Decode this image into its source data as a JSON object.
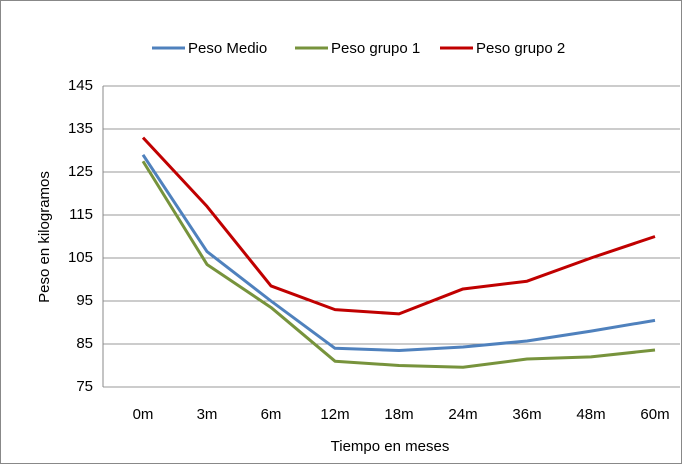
{
  "chart_data": {
    "type": "line",
    "x_label": "Tiempo en meses",
    "y_label": "Peso en kilogramos",
    "categories": [
      "0m",
      "3m",
      "6m",
      "12m",
      "18m",
      "24m",
      "36m",
      "48m",
      "60m"
    ],
    "series": [
      {
        "name": "Peso Medio",
        "color": "#4f81bd",
        "values": [
          129,
          106.5,
          95,
          84,
          83.5,
          84.3,
          85.7,
          88,
          90.5
        ]
      },
      {
        "name": "Peso grupo 1",
        "color": "#77933c",
        "values": [
          127.5,
          103.5,
          93.5,
          81,
          80,
          79.6,
          81.5,
          82,
          83.6
        ]
      },
      {
        "name": "Peso grupo 2",
        "color": "#c00000",
        "values": [
          133,
          117,
          98.5,
          93,
          92,
          97.8,
          99.6,
          105,
          110
        ]
      }
    ],
    "ylim": [
      75,
      145
    ],
    "yticks": [
      75,
      85,
      95,
      105,
      115,
      125,
      135,
      145
    ],
    "grid": true,
    "legend": "top"
  }
}
